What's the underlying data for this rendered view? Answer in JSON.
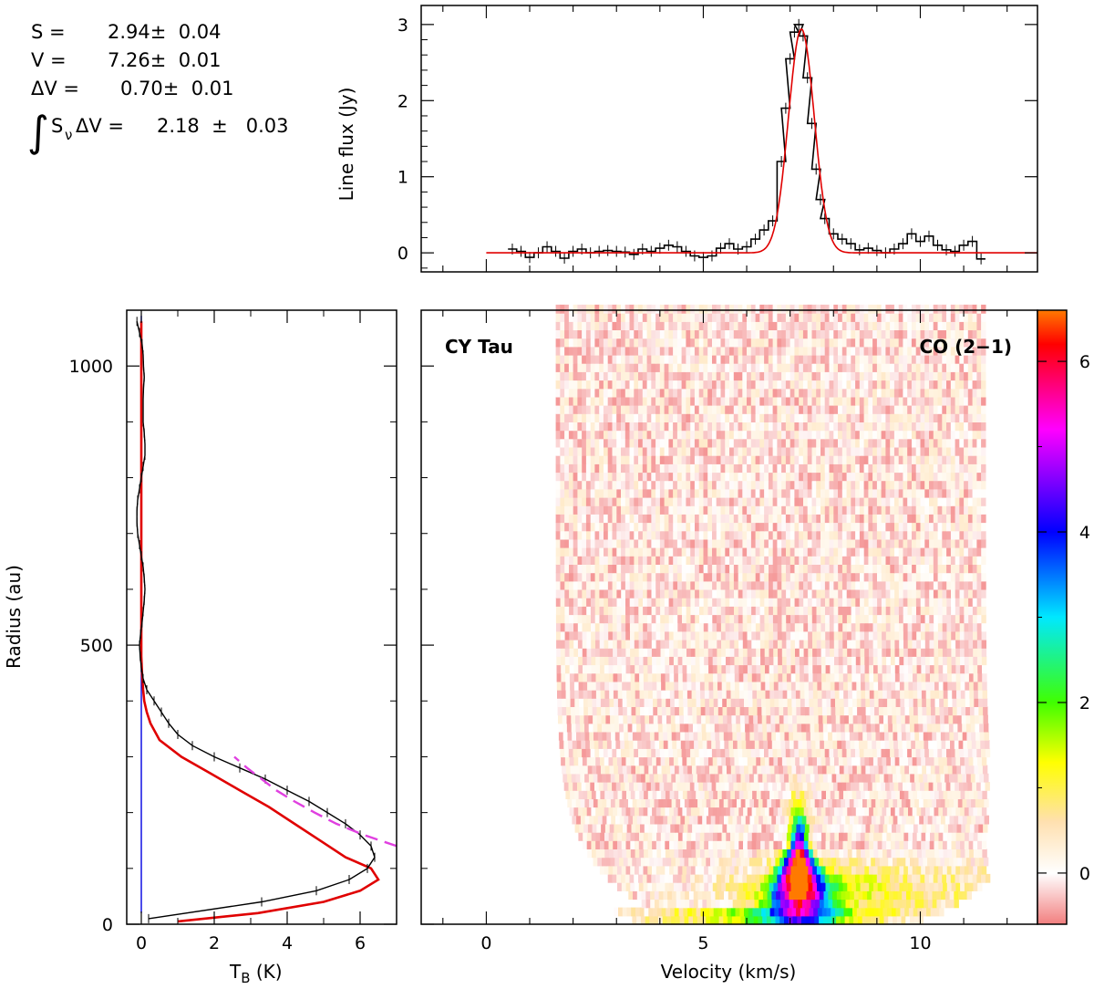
{
  "fit_results": {
    "S_label": "S =",
    "S_value": "2.94±  0.04",
    "V_label": "V =",
    "V_value": "7.26±  0.01",
    "dV_label": "ΔV =",
    "dV_value": "0.70±  0.01",
    "integral_symbol": "∫",
    "integral_label": "S",
    "integral_sub": "ν",
    "integral_tail": "ΔV =",
    "integral_value": "2.18  ±   0.03"
  },
  "chart_data": [
    {
      "type": "line",
      "name": "spectrum",
      "ylabel": "Line flux (Jy)",
      "xlabel": "",
      "xlim": [
        -1.5,
        12.7
      ],
      "ylim": [
        -0.25,
        3.25
      ],
      "yticks": [
        0,
        1,
        2,
        3
      ],
      "xticks": [
        0,
        5,
        10
      ],
      "series": [
        {
          "kind": "observed",
          "color": "#000000",
          "x": [
            0.6,
            0.8,
            1.0,
            1.2,
            1.4,
            1.6,
            1.8,
            2.0,
            2.2,
            2.4,
            2.6,
            2.8,
            3.0,
            3.2,
            3.4,
            3.6,
            3.8,
            4.0,
            4.2,
            4.4,
            4.6,
            4.8,
            5.0,
            5.2,
            5.4,
            5.6,
            5.8,
            6.0,
            6.2,
            6.4,
            6.6,
            6.8,
            6.9,
            7.0,
            7.1,
            7.2,
            7.3,
            7.4,
            7.5,
            7.6,
            7.7,
            7.8,
            8.0,
            8.2,
            8.4,
            8.6,
            8.8,
            9.0,
            9.2,
            9.4,
            9.6,
            9.8,
            10.0,
            10.2,
            10.4,
            10.6,
            10.8,
            11.0,
            11.2,
            11.4
          ],
          "y": [
            0.05,
            0.02,
            -0.06,
            0.0,
            0.08,
            0.02,
            -0.07,
            0.02,
            0.05,
            0.0,
            0.02,
            0.03,
            0.02,
            0.01,
            -0.02,
            0.05,
            0.02,
            0.06,
            0.1,
            0.08,
            0.02,
            -0.04,
            -0.06,
            -0.04,
            0.06,
            0.12,
            0.05,
            0.08,
            0.18,
            0.3,
            0.42,
            1.2,
            1.9,
            2.55,
            2.9,
            3.0,
            2.85,
            2.3,
            1.7,
            1.1,
            0.7,
            0.45,
            0.25,
            0.18,
            0.12,
            0.04,
            0.06,
            0.03,
            0.0,
            0.05,
            0.12,
            0.25,
            0.15,
            0.22,
            0.1,
            0.04,
            0.02,
            0.1,
            0.15,
            -0.08
          ]
        },
        {
          "kind": "gaussian-fit",
          "color": "#e00000",
          "amplitude": 2.94,
          "center": 7.26,
          "fwhm": 0.7,
          "x_range": [
            0.0,
            12.7
          ]
        }
      ]
    },
    {
      "type": "line",
      "name": "radial-profile",
      "xlabel": "T",
      "xlabel_sub": "B",
      "xlabel_unit": " (K)",
      "ylabel": "Radius (au)",
      "xlim": [
        -0.4,
        7.0
      ],
      "ylim": [
        0,
        1100
      ],
      "xticks": [
        0,
        2,
        4,
        6
      ],
      "yticks": [
        0,
        500,
        1000
      ],
      "series": [
        {
          "kind": "observed",
          "color": "#000000",
          "r": [
            10,
            40,
            60,
            80,
            100,
            120,
            140,
            160,
            180,
            200,
            220,
            240,
            260,
            280,
            300,
            320,
            340,
            360,
            380,
            400,
            420,
            440,
            460,
            480,
            500,
            520,
            540,
            560,
            580,
            600,
            620,
            640,
            660,
            680,
            700,
            720,
            740,
            760,
            780,
            800,
            820,
            840,
            860,
            880,
            900,
            920,
            940,
            960,
            980,
            1000,
            1020,
            1040,
            1060,
            1080
          ],
          "t": [
            0.2,
            3.3,
            4.8,
            5.7,
            6.2,
            6.4,
            6.3,
            6.0,
            5.6,
            5.1,
            4.6,
            4.0,
            3.4,
            2.7,
            2.0,
            1.4,
            1.0,
            0.75,
            0.55,
            0.35,
            0.15,
            0.05,
            0.0,
            -0.03,
            -0.05,
            -0.02,
            0.02,
            0.05,
            0.08,
            0.1,
            0.08,
            0.05,
            0.0,
            -0.05,
            -0.1,
            -0.12,
            -0.12,
            -0.1,
            -0.05,
            0.0,
            0.05,
            0.1,
            0.1,
            0.08,
            0.05,
            0.05,
            0.05,
            0.06,
            0.08,
            0.06,
            0.05,
            0.02,
            -0.05,
            -0.12
          ]
        },
        {
          "kind": "model",
          "color": "#e00000",
          "r": [
            5,
            20,
            40,
            60,
            80,
            100,
            120,
            150,
            180,
            210,
            240,
            270,
            300,
            330,
            360,
            380,
            400,
            420,
            450,
            480,
            500,
            550,
            600,
            650,
            700,
            750,
            800,
            850,
            900,
            950,
            1000,
            1050,
            1080
          ],
          "t": [
            1.0,
            3.2,
            5.0,
            6.0,
            6.5,
            6.3,
            5.6,
            4.9,
            4.2,
            3.5,
            2.7,
            1.9,
            1.1,
            0.5,
            0.25,
            0.15,
            0.08,
            0.05,
            0.02,
            0.0,
            0.0,
            0.0,
            0.0,
            0.0,
            0.0,
            0.0,
            0.0,
            0.0,
            0.0,
            0.0,
            0.0,
            0.0,
            0.0
          ]
        },
        {
          "kind": "power-law",
          "color": "#e040e0",
          "style": "dashed",
          "r": [
            140,
            160,
            180,
            200,
            220,
            240,
            260,
            280,
            300
          ],
          "t": [
            7.0,
            6.1,
            5.35,
            4.75,
            4.2,
            3.7,
            3.3,
            2.9,
            2.55
          ]
        },
        {
          "kind": "baseline",
          "color": "#0000e0",
          "t_value": 0.0,
          "r_range": [
            20,
            1090
          ]
        }
      ]
    },
    {
      "type": "heatmap",
      "name": "pv-diagram",
      "xlabel": "Velocity (km/s)",
      "ylabel": "",
      "xlim": [
        -1.5,
        12.7
      ],
      "ylim": [
        0,
        1100
      ],
      "xticks": [
        0,
        5,
        10
      ],
      "yticks": [
        0,
        500,
        1000
      ],
      "label_left": "CY Tau",
      "label_right": "CO (2−1)",
      "emission": {
        "center_velocity": 7.2,
        "peak": 6.5,
        "peak_radius": 100,
        "extent_radius": 380,
        "noise_region_v": [
          0.3,
          11.5
        ]
      },
      "colorbar": {
        "range": [
          -0.6,
          6.6
        ],
        "ticks": [
          0,
          2,
          4,
          6
        ],
        "stops": [
          {
            "v": -0.6,
            "color": "#f27f7f"
          },
          {
            "v": 0.0,
            "color": "#ffffff"
          },
          {
            "v": 0.6,
            "color": "#ffe0b0"
          },
          {
            "v": 1.3,
            "color": "#ffff00"
          },
          {
            "v": 2.0,
            "color": "#40ff00"
          },
          {
            "v": 3.0,
            "color": "#00e8ff"
          },
          {
            "v": 4.0,
            "color": "#0000ff"
          },
          {
            "v": 5.2,
            "color": "#ff00ff"
          },
          {
            "v": 6.2,
            "color": "#ff0000"
          },
          {
            "v": 6.6,
            "color": "#ff7a00"
          }
        ]
      }
    }
  ]
}
